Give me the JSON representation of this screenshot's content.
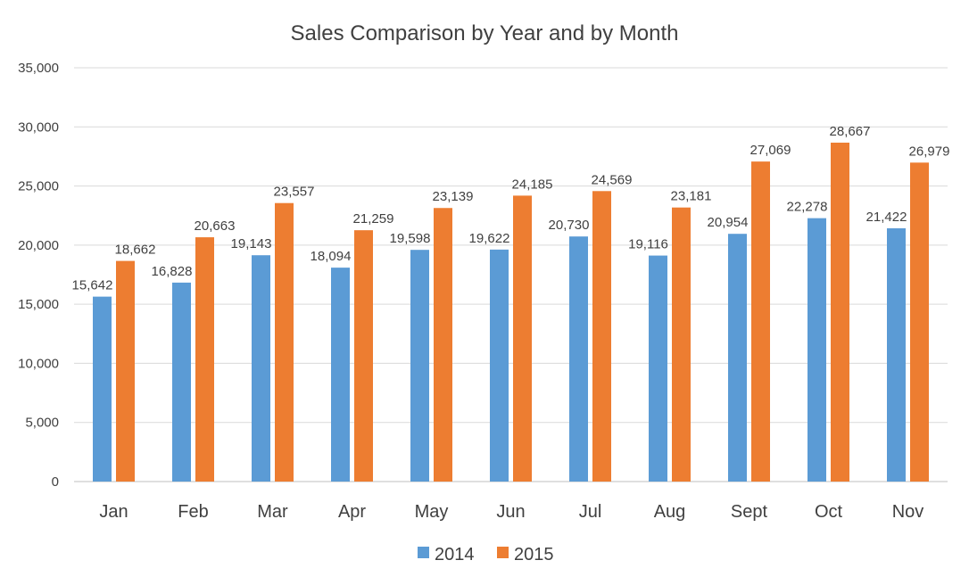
{
  "chart_data": {
    "type": "bar",
    "title": "Sales Comparison by Year and by Month",
    "xlabel": "",
    "ylabel": "",
    "categories": [
      "Jan",
      "Feb",
      "Mar",
      "Apr",
      "May",
      "Jun",
      "Jul",
      "Aug",
      "Sept",
      "Oct",
      "Nov"
    ],
    "series": [
      {
        "name": "2014",
        "color": "#5B9BD5",
        "values": [
          15642,
          16828,
          19143,
          18094,
          19598,
          19622,
          20730,
          19116,
          20954,
          22278,
          21422
        ],
        "labels": [
          "15,642",
          "16,828",
          "19,143",
          "18,094",
          "19,598",
          "19,622",
          "20,730",
          "19,116",
          "20,954",
          "22,278",
          "21,422"
        ]
      },
      {
        "name": "2015",
        "color": "#ED7D31",
        "values": [
          18662,
          20663,
          23557,
          21259,
          23139,
          24185,
          24569,
          23181,
          27069,
          28667,
          26979
        ],
        "labels": [
          "18,662",
          "20,663",
          "23,557",
          "21,259",
          "23,139",
          "24,185",
          "24,569",
          "23,181",
          "27,069",
          "28,667",
          "26,979"
        ]
      }
    ],
    "ylim": [
      0,
      35000
    ],
    "yticks": [
      0,
      5000,
      10000,
      15000,
      20000,
      25000,
      30000,
      35000
    ],
    "ytick_labels": [
      "0",
      "5,000",
      "10,000",
      "15,000",
      "20,000",
      "25,000",
      "30,000",
      "35,000"
    ],
    "grid": true,
    "legend_position": "bottom",
    "gridline_color": "#D9D9D9",
    "axis_color": "#BFBFBF"
  }
}
